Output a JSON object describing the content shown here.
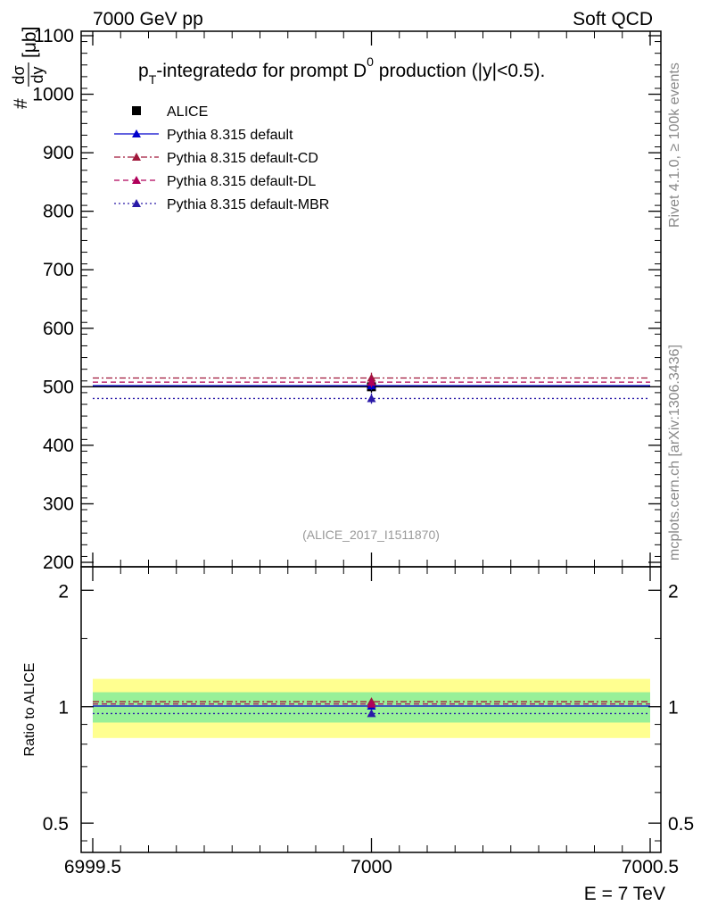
{
  "header": {
    "left": "7000 GeV pp",
    "right": "Soft QCD"
  },
  "side_text": {
    "rivet": "Rivet 4.1.0, ≥ 100k events",
    "mcplots": "mcplots.cern.ch [arXiv:1306.3436]"
  },
  "title": {
    "p": "p",
    "sub": "T",
    "mid": "-integratedσ for prompt D",
    "sup": "0",
    "tail": " production (|y|<0.5)."
  },
  "ylabel": {
    "hash": "#",
    "num": "dσ",
    "den": "dy",
    "unit": "[μb]"
  },
  "watermark": "(ALICE_2017_I1511870)",
  "ratio_ylabel": "Ratio to ALICE",
  "xlabel": "E = 7 TeV",
  "legend": [
    {
      "label": "ALICE",
      "marker": "square",
      "color": "#000000",
      "line": "none"
    },
    {
      "label": "Pythia 8.315 default",
      "marker": "triangle",
      "color": "#0000cc",
      "line": "solid"
    },
    {
      "label": "Pythia 8.315 default-CD",
      "marker": "triangle",
      "color": "#a0173a",
      "line": "dashdot"
    },
    {
      "label": "Pythia 8.315 default-DL",
      "marker": "triangle",
      "color": "#b0005a",
      "line": "dashed"
    },
    {
      "label": "Pythia 8.315 default-MBR",
      "marker": "triangle",
      "color": "#2a1aa8",
      "line": "dotted"
    }
  ],
  "chart_data": [
    {
      "type": "scatter",
      "panel": "main",
      "title": "pT-integrated σ for prompt D0 production (|y|<0.5).",
      "xlabel": "E = 7 TeV",
      "ylabel": "dσ/dy [μb]",
      "xlim": [
        6999.5,
        7000.5
      ],
      "ylim": [
        190,
        1105
      ],
      "x_ticks": [
        6999.5,
        7000,
        7000.5
      ],
      "x_tick_labels": [
        "6999.5",
        "7000",
        "7000.5"
      ],
      "y_ticks": [
        200,
        300,
        400,
        500,
        600,
        700,
        800,
        900,
        1000,
        1100
      ],
      "y_tick_labels": [
        "200",
        "300",
        "400",
        "500",
        "600",
        "700",
        "800",
        "900",
        "1000",
        "1100"
      ],
      "series": [
        {
          "name": "ALICE",
          "x": [
            7000
          ],
          "y": [
            500
          ],
          "yerr": [
            10
          ],
          "xlo": 6999.5,
          "xhi": 7000.5
        },
        {
          "name": "Pythia 8.315 default",
          "x": [
            7000
          ],
          "y": [
            502
          ],
          "yerr": [
            8
          ],
          "xlo": 6999.5,
          "xhi": 7000.5
        },
        {
          "name": "Pythia 8.315 default-CD",
          "x": [
            7000
          ],
          "y": [
            515
          ],
          "yerr": [
            9
          ],
          "xlo": 6999.5,
          "xhi": 7000.5
        },
        {
          "name": "Pythia 8.315 default-DL",
          "x": [
            7000
          ],
          "y": [
            508
          ],
          "yerr": [
            9
          ],
          "xlo": 6999.5,
          "xhi": 7000.5
        },
        {
          "name": "Pythia 8.315 default-MBR",
          "x": [
            7000
          ],
          "y": [
            480
          ],
          "yerr": [
            9
          ],
          "xlo": 6999.5,
          "xhi": 7000.5
        }
      ]
    },
    {
      "type": "scatter",
      "panel": "ratio",
      "ylabel": "Ratio to ALICE",
      "xlabel": "E = 7 TeV",
      "xlim": [
        6999.5,
        7000.5
      ],
      "ylim": [
        0.42,
        2.3
      ],
      "y_scale": "log",
      "y_ticks": [
        0.5,
        1,
        2
      ],
      "y_tick_labels": [
        "0.5",
        "1",
        "2"
      ],
      "bands": [
        {
          "name": "total uncertainty",
          "low": 0.83,
          "high": 1.18,
          "color": "#ffff90"
        },
        {
          "name": "stat uncertainty",
          "low": 0.91,
          "high": 1.09,
          "color": "#98f098"
        }
      ],
      "series": [
        {
          "name": "Pythia 8.315 default",
          "x": [
            7000
          ],
          "y": [
            1.004
          ],
          "yerr": [
            0.016
          ]
        },
        {
          "name": "Pythia 8.315 default-CD",
          "x": [
            7000
          ],
          "y": [
            1.03
          ],
          "yerr": [
            0.018
          ]
        },
        {
          "name": "Pythia 8.315 default-DL",
          "x": [
            7000
          ],
          "y": [
            1.016
          ],
          "yerr": [
            0.018
          ]
        },
        {
          "name": "Pythia 8.315 default-MBR",
          "x": [
            7000
          ],
          "y": [
            0.96
          ],
          "yerr": [
            0.018
          ]
        }
      ]
    }
  ]
}
